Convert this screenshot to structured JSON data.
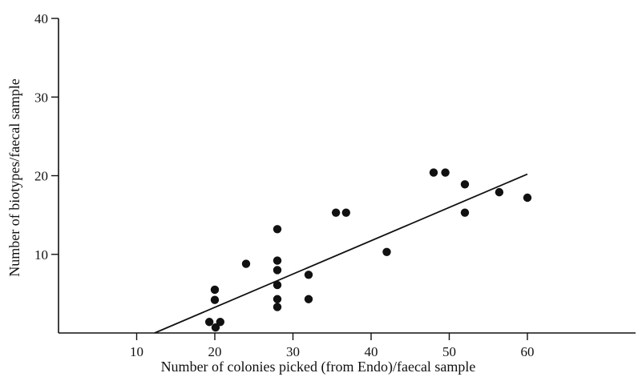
{
  "chart_data": {
    "type": "scatter",
    "title": "",
    "xlabel": "Number of colonies picked (from Endo)/faecal sample",
    "ylabel": "Number of biotypes/faecal sample",
    "xlim": [
      0,
      72
    ],
    "ylim": [
      0,
      40
    ],
    "x_ticks": [
      10,
      20,
      30,
      40,
      50,
      60
    ],
    "y_ticks": [
      10,
      20,
      30,
      40
    ],
    "grid": false,
    "legend": "none",
    "points": [
      {
        "x": 20,
        "y": 5.5
      },
      {
        "x": 20,
        "y": 4.2
      },
      {
        "x": 19.3,
        "y": 1.4
      },
      {
        "x": 20.1,
        "y": 0.7
      },
      {
        "x": 20.7,
        "y": 1.4
      },
      {
        "x": 24,
        "y": 8.8
      },
      {
        "x": 28,
        "y": 13.2
      },
      {
        "x": 28,
        "y": 9.2
      },
      {
        "x": 28,
        "y": 8.0
      },
      {
        "x": 28,
        "y": 6.1
      },
      {
        "x": 28,
        "y": 4.3
      },
      {
        "x": 28,
        "y": 3.3
      },
      {
        "x": 32,
        "y": 7.4
      },
      {
        "x": 32,
        "y": 4.3
      },
      {
        "x": 35.5,
        "y": 15.3
      },
      {
        "x": 36.8,
        "y": 15.3
      },
      {
        "x": 42,
        "y": 10.3
      },
      {
        "x": 48,
        "y": 20.4
      },
      {
        "x": 49.5,
        "y": 20.4
      },
      {
        "x": 52,
        "y": 18.9
      },
      {
        "x": 52,
        "y": 15.3
      },
      {
        "x": 56.4,
        "y": 17.9
      },
      {
        "x": 60,
        "y": 17.2
      }
    ],
    "fit_line": {
      "x": [
        12.3,
        60
      ],
      "y": [
        0,
        20.2
      ]
    }
  }
}
